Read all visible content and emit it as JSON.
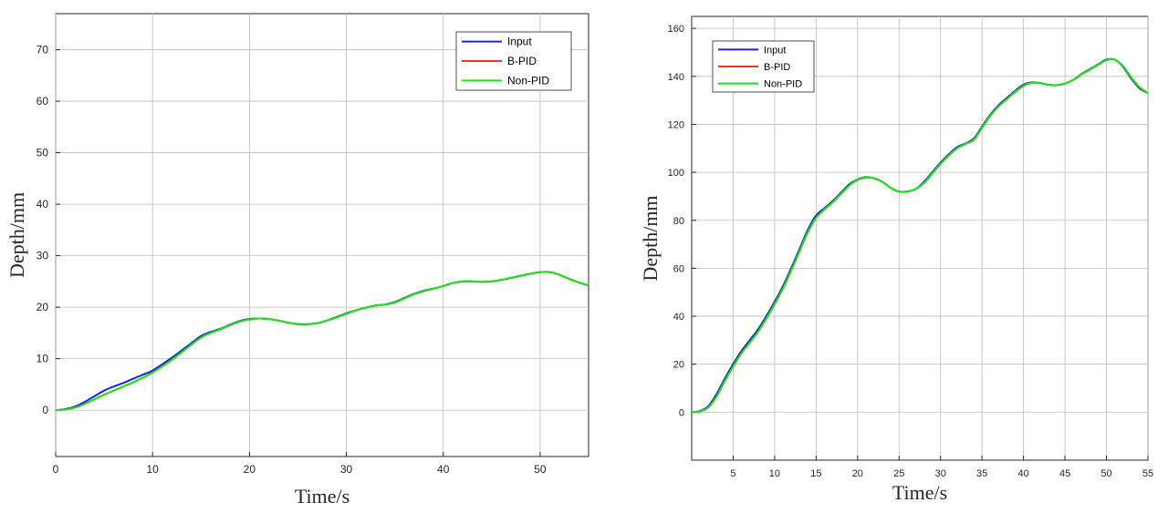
{
  "chart_data": [
    {
      "type": "line",
      "xlabel": "Time/s",
      "ylabel": "Depth/mm",
      "xlim": [
        0,
        55
      ],
      "ylim": [
        -9,
        77
      ],
      "xticks": [
        0,
        10,
        20,
        30,
        40,
        50
      ],
      "yticks": [
        0,
        10,
        20,
        30,
        40,
        50,
        60,
        70
      ],
      "grid": true,
      "legend_position": "top-right",
      "series": [
        {
          "name": "Input",
          "color": "#1f1fe6",
          "x": [
            0,
            1,
            2,
            3,
            4,
            5,
            6,
            7,
            8,
            9,
            10,
            12,
            14,
            15,
            16,
            17,
            18,
            19,
            20,
            21,
            22,
            23,
            24,
            25,
            26,
            27,
            28,
            29,
            30,
            31,
            32,
            33,
            34,
            35,
            36,
            37,
            38,
            39,
            40,
            41,
            42,
            43,
            44,
            45,
            46,
            47,
            48,
            49,
            50,
            51,
            52,
            53,
            54,
            55
          ],
          "y": [
            0,
            0.2,
            0.7,
            1.6,
            2.7,
            3.8,
            4.6,
            5.3,
            6.1,
            6.9,
            7.7,
            10.2,
            13.0,
            14.4,
            15.2,
            15.8,
            16.6,
            17.3,
            17.7,
            17.8,
            17.7,
            17.4,
            17.0,
            16.7,
            16.7,
            16.9,
            17.4,
            18.1,
            18.8,
            19.4,
            19.9,
            20.3,
            20.5,
            21.0,
            21.8,
            22.6,
            23.2,
            23.6,
            24.1,
            24.7,
            25.0,
            25.0,
            24.9,
            25.0,
            25.3,
            25.7,
            26.1,
            26.5,
            26.8,
            26.8,
            26.3,
            25.5,
            24.8,
            24.2
          ]
        },
        {
          "name": "B-PID",
          "color": "#e63a28",
          "x": [
            0,
            1,
            2,
            3,
            4,
            5,
            6,
            7,
            8,
            9,
            10,
            12,
            14,
            15,
            16,
            17,
            18,
            19,
            20,
            21,
            22,
            23,
            24,
            25,
            26,
            27,
            28,
            29,
            30,
            31,
            32,
            33,
            34,
            35,
            36,
            37,
            38,
            39,
            40,
            41,
            42,
            43,
            44,
            45,
            46,
            47,
            48,
            49,
            50,
            51,
            52,
            53,
            54,
            55
          ],
          "y": [
            0,
            0.1,
            0.5,
            1.2,
            2.1,
            3.0,
            3.8,
            4.6,
            5.4,
            6.3,
            7.3,
            9.8,
            12.7,
            14.1,
            15.0,
            15.7,
            16.5,
            17.2,
            17.6,
            17.8,
            17.7,
            17.4,
            17.0,
            16.7,
            16.7,
            16.9,
            17.4,
            18.0,
            18.7,
            19.4,
            19.9,
            20.3,
            20.5,
            20.9,
            21.7,
            22.5,
            23.1,
            23.6,
            24.1,
            24.7,
            25.0,
            25.0,
            24.9,
            25.0,
            25.3,
            25.7,
            26.1,
            26.5,
            26.8,
            26.8,
            26.3,
            25.5,
            24.8,
            24.2
          ]
        },
        {
          "name": "Non-PID",
          "color": "#17e617",
          "x": [
            0,
            1,
            2,
            3,
            4,
            5,
            6,
            7,
            8,
            9,
            10,
            12,
            14,
            15,
            16,
            17,
            18,
            19,
            20,
            21,
            22,
            23,
            24,
            25,
            26,
            27,
            28,
            29,
            30,
            31,
            32,
            33,
            34,
            35,
            36,
            37,
            38,
            39,
            40,
            41,
            42,
            43,
            44,
            45,
            46,
            47,
            48,
            49,
            50,
            51,
            52,
            53,
            54,
            55
          ],
          "y": [
            0,
            0.1,
            0.5,
            1.2,
            2.1,
            3.0,
            3.8,
            4.6,
            5.4,
            6.3,
            7.3,
            9.8,
            12.7,
            14.1,
            15.0,
            15.7,
            16.5,
            17.2,
            17.6,
            17.8,
            17.7,
            17.4,
            17.0,
            16.7,
            16.7,
            16.9,
            17.4,
            18.0,
            18.7,
            19.4,
            19.9,
            20.3,
            20.5,
            20.9,
            21.7,
            22.5,
            23.1,
            23.6,
            24.1,
            24.7,
            25.0,
            25.0,
            24.9,
            25.0,
            25.3,
            25.7,
            26.1,
            26.5,
            26.8,
            26.8,
            26.3,
            25.5,
            24.8,
            24.2
          ]
        }
      ]
    },
    {
      "type": "line",
      "xlabel": "Time/s",
      "ylabel": "Depth/mm",
      "xlim": [
        0,
        55
      ],
      "ylim": [
        -20,
        165
      ],
      "xticks": [
        5,
        10,
        15,
        20,
        25,
        30,
        35,
        40,
        45,
        50,
        55
      ],
      "yticks": [
        0,
        20,
        40,
        60,
        80,
        100,
        120,
        140,
        160
      ],
      "grid": true,
      "legend_position": "top-left",
      "series": [
        {
          "name": "Input",
          "color": "#1f1fe6",
          "x": [
            0,
            1,
            2,
            3,
            4,
            5,
            6,
            7,
            8,
            9,
            10,
            11,
            12,
            13,
            14,
            15,
            16,
            17,
            18,
            19,
            20,
            21,
            22,
            23,
            24,
            25,
            26,
            27,
            28,
            29,
            30,
            31,
            32,
            33,
            34,
            35,
            36,
            37,
            38,
            39,
            40,
            41,
            42,
            43,
            44,
            45,
            46,
            47,
            48,
            49,
            50,
            51,
            52,
            53,
            54,
            55
          ],
          "y": [
            0,
            0.5,
            2.5,
            7.5,
            14,
            20,
            25.5,
            30,
            34.5,
            40,
            46,
            52.5,
            60,
            68,
            76,
            82,
            85,
            88,
            91.5,
            95,
            97,
            98,
            97.5,
            96,
            93.5,
            92,
            92,
            93,
            96,
            100,
            104,
            107.5,
            110.5,
            112,
            114,
            119,
            124,
            128,
            131,
            134,
            136.5,
            137.5,
            137.2,
            136.5,
            136.3,
            137,
            138.5,
            141,
            143,
            145,
            147,
            147,
            144,
            139,
            135,
            133
          ]
        },
        {
          "name": "B-PID",
          "color": "#e63a28",
          "x": [
            0,
            1,
            2,
            3,
            4,
            5,
            6,
            7,
            8,
            9,
            10,
            11,
            12,
            13,
            14,
            15,
            16,
            17,
            18,
            19,
            20,
            21,
            22,
            23,
            24,
            25,
            26,
            27,
            28,
            29,
            30,
            31,
            32,
            33,
            34,
            35,
            36,
            37,
            38,
            39,
            40,
            41,
            42,
            43,
            44,
            45,
            46,
            47,
            48,
            49,
            50,
            51,
            52,
            53,
            54,
            55
          ],
          "y": [
            0,
            0.3,
            2,
            6.5,
            13,
            19,
            24.5,
            29,
            33.5,
            39,
            45,
            51.5,
            59,
            67,
            75,
            81,
            84.5,
            87.5,
            91,
            94.5,
            96.8,
            97.8,
            97.5,
            96,
            93.5,
            92,
            92,
            93,
            95.5,
            99.5,
            103.5,
            107,
            110,
            111.8,
            113.5,
            118.5,
            123.5,
            127.5,
            130.5,
            133.5,
            136,
            137.3,
            137.2,
            136.5,
            136.3,
            137,
            138.5,
            140.8,
            142.8,
            144.8,
            146.8,
            147,
            144.3,
            139.5,
            135.5,
            133
          ]
        },
        {
          "name": "Non-PID",
          "color": "#17e617",
          "x": [
            0,
            1,
            2,
            3,
            4,
            5,
            6,
            7,
            8,
            9,
            10,
            11,
            12,
            13,
            14,
            15,
            16,
            17,
            18,
            19,
            20,
            21,
            22,
            23,
            24,
            25,
            26,
            27,
            28,
            29,
            30,
            31,
            32,
            33,
            34,
            35,
            36,
            37,
            38,
            39,
            40,
            41,
            42,
            43,
            44,
            45,
            46,
            47,
            48,
            49,
            50,
            51,
            52,
            53,
            54,
            55
          ],
          "y": [
            0,
            0.3,
            2,
            6.5,
            13,
            19,
            24.5,
            29,
            33.5,
            39,
            45,
            51.5,
            59,
            67,
            75,
            81,
            84.5,
            87.5,
            91,
            94.5,
            96.8,
            97.8,
            97.5,
            96,
            93.5,
            92,
            92,
            93,
            95.5,
            99.5,
            103.5,
            107,
            110,
            111.8,
            113.5,
            118.5,
            123.5,
            127.5,
            130.5,
            133.5,
            136,
            137.3,
            137.2,
            136.5,
            136.3,
            137,
            138.5,
            140.8,
            142.8,
            144.8,
            146.8,
            147,
            144.3,
            139.5,
            135.5,
            133
          ]
        }
      ]
    }
  ]
}
